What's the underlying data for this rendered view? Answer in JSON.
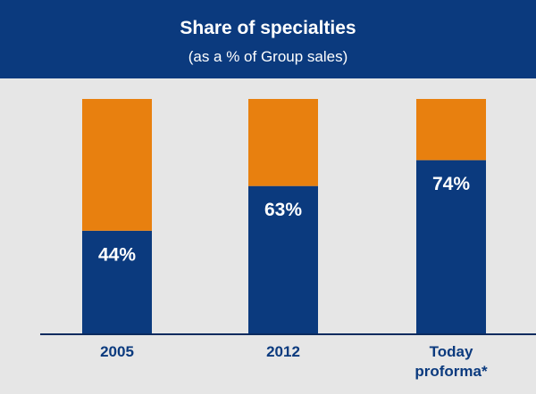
{
  "chart_data": {
    "type": "stacked_bar",
    "title": "Share of specialties",
    "subtitle": "(as a % of Group sales)",
    "categories": [
      "2005",
      "2012",
      "Today proforma*"
    ],
    "series": [
      {
        "color": "#0b3a7e",
        "values": [
          44,
          63,
          74
        ],
        "value_labels": [
          "44%",
          "63%",
          "74%"
        ]
      },
      {
        "color": "#e8800f",
        "values": [
          56,
          37,
          26
        ]
      }
    ],
    "ylim": [
      0,
      100
    ]
  }
}
